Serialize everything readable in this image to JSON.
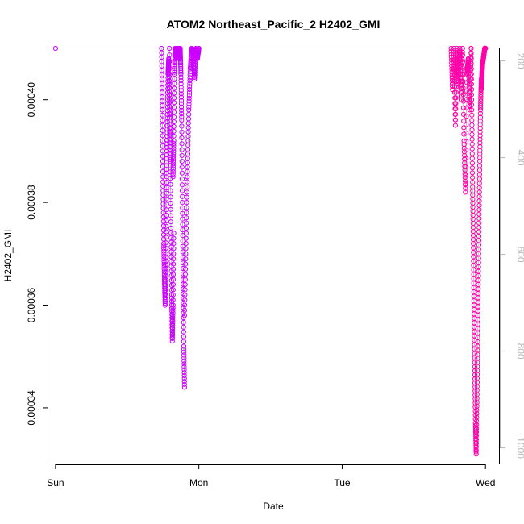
{
  "chart_data": {
    "type": "scatter",
    "title": "ATOM2 Northeast_Pacific_2 H2402_GMI",
    "xlabel": "Date",
    "ylabel": "H2402_GMI",
    "x_ticks": [
      "Sun",
      "Mon",
      "Tue",
      "Wed"
    ],
    "y_ticks": [
      "0.00034",
      "0.00036",
      "0.00038",
      "0.00040"
    ],
    "y_right_ticks": [
      "200",
      "400",
      "600",
      "800",
      "1000"
    ],
    "xlim": [
      -0.05,
      3.1
    ],
    "ylim": [
      0.000329,
      0.00041
    ],
    "y_right_lim": [
      1034,
      174
    ],
    "y_right_axis": "reversed",
    "marker": "open-circle",
    "colors": {
      "point_early": "#cc00ff",
      "point_late": "#ff00aa",
      "altitude_trace": "#bdbdbd"
    },
    "profiles": [
      {
        "x": [
          0.0
        ],
        "y": [
          0.00041
        ]
      },
      {
        "x": [
          0.74,
          0.745,
          0.75,
          0.755,
          0.76,
          0.765,
          0.77,
          0.775,
          0.78,
          0.785,
          0.79,
          0.795,
          0.8
        ],
        "y": [
          0.00041,
          0.000398,
          0.000384,
          0.000372,
          0.000365,
          0.00036,
          0.00037,
          0.000385,
          0.000395,
          0.000405,
          0.000408,
          0.000398,
          0.000388
        ]
      },
      {
        "x": [
          0.795,
          0.8,
          0.805,
          0.81,
          0.815,
          0.82,
          0.825
        ],
        "y": [
          0.00041,
          0.000392,
          0.000375,
          0.000362,
          0.000353,
          0.00036,
          0.000374
        ]
      },
      {
        "x": [
          0.82,
          0.825,
          0.83,
          0.835,
          0.84,
          0.845,
          0.85,
          0.855,
          0.86,
          0.865,
          0.87,
          0.875,
          0.88,
          0.885,
          0.89,
          0.895,
          0.9
        ],
        "y": [
          0.000385,
          0.000392,
          0.000405,
          0.00041,
          0.000409,
          0.000408,
          0.00041,
          0.000409,
          0.00041,
          0.000408,
          0.00041,
          0.000405,
          0.000396,
          0.00038,
          0.000365,
          0.000352,
          0.000344
        ]
      },
      {
        "x": [
          0.9,
          0.91,
          0.92,
          0.93,
          0.94,
          0.95,
          0.96,
          0.97,
          0.98,
          0.99,
          1.0
        ],
        "y": [
          0.000358,
          0.000372,
          0.000386,
          0.000398,
          0.000406,
          0.00041,
          0.000409,
          0.000404,
          0.00041,
          0.000408,
          0.00041
        ]
      },
      {
        "x": [
          2.76,
          2.77,
          2.78,
          2.79,
          2.8,
          2.81,
          2.82,
          2.83,
          2.84,
          2.85,
          2.86,
          2.87,
          2.88,
          2.89,
          2.9
        ],
        "y": [
          0.00041,
          0.000402,
          0.00041,
          0.000395,
          0.00041,
          0.000403,
          0.00041,
          0.0004,
          0.00041,
          0.000392,
          0.000382,
          0.000405,
          0.000408,
          0.000398,
          0.00041
        ]
      },
      {
        "x": [
          2.9,
          2.905,
          2.91,
          2.915,
          2.92,
          2.925,
          2.93,
          2.935,
          2.94,
          2.945,
          2.95,
          2.955,
          2.96,
          2.965,
          2.97
        ],
        "y": [
          0.00041,
          0.000396,
          0.000383,
          0.000372,
          0.00036,
          0.000348,
          0.000337,
          0.000331,
          0.000341,
          0.000352,
          0.000364,
          0.000376,
          0.000388,
          0.000398,
          0.000404
        ]
      },
      {
        "x": [
          2.97,
          2.975,
          2.98,
          2.985,
          2.99,
          2.995,
          3.0
        ],
        "y": [
          0.000402,
          0.000405,
          0.000407,
          0.000408,
          0.000409,
          0.00041,
          0.00041
        ]
      }
    ]
  }
}
